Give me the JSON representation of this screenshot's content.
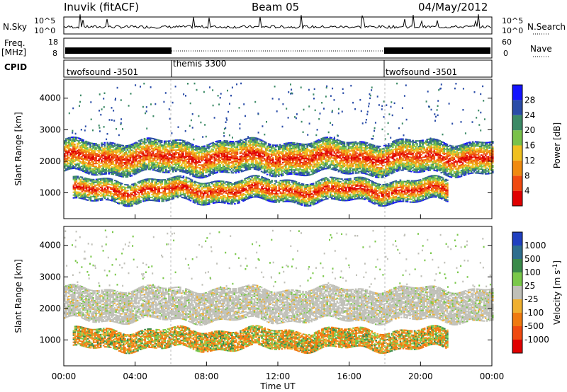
{
  "header": {
    "station": "Inuvik (fitACF)",
    "beam": "Beam 05",
    "date": "04/May/2012"
  },
  "left_labels": {
    "nsky": "N.Sky",
    "freq": "Freq.",
    "freq_unit": "[MHz]",
    "cpid": "CPID"
  },
  "right_labels": {
    "nsearch": "N.Search",
    "nave": "Nave"
  },
  "nsky_axis": {
    "ticks": [
      "10^5",
      "10^0"
    ]
  },
  "nsearch_axis": {
    "ticks": [
      "10^5",
      "10^0"
    ]
  },
  "freq_axis": {
    "ticks": [
      "18",
      "8"
    ]
  },
  "nave_axis": {
    "ticks": [
      "60",
      "0"
    ]
  },
  "cpid": [
    {
      "label": "twofsound -3501",
      "start_h": 0,
      "end_h": 6
    },
    {
      "label": "themis 3300",
      "start_h": 6,
      "end_h": 18
    },
    {
      "label": "twofsound -3501",
      "start_h": 18,
      "end_h": 24
    }
  ],
  "chart_data": [
    {
      "type": "heatmap",
      "name": "power",
      "ylabel": "Slant Range [km]",
      "y_ticks": [
        1000,
        2000,
        3000,
        4000
      ],
      "ylim": [
        180,
        4600
      ],
      "xlim": [
        0,
        24
      ],
      "colorbar": {
        "label": "Power [dB]",
        "ticks": [
          "4",
          "8",
          "12",
          "16",
          "20",
          "24",
          "28"
        ],
        "colors": [
          "#1414ff",
          "#2a4ca8",
          "#3c8a66",
          "#7ac24a",
          "#f0c020",
          "#f08a10",
          "#f04a10",
          "#e00000"
        ]
      },
      "bands": [
        {
          "range_km": [
            700,
            1400
          ],
          "start_h": 0.5,
          "end_h": 21.5,
          "level": "high"
        },
        {
          "range_km": [
            1600,
            2600
          ],
          "start_h": 0.0,
          "end_h": 24.0,
          "level": "high"
        }
      ]
    },
    {
      "type": "heatmap",
      "name": "velocity",
      "ylabel": "Slant Range [km]",
      "y_ticks": [
        1000,
        2000,
        3000,
        4000
      ],
      "ylim": [
        180,
        4600
      ],
      "xlim": [
        0,
        24
      ],
      "colorbar": {
        "label": "Velocity [m s^-1]",
        "ticks": [
          "1000",
          "500",
          "100",
          "25",
          "-25",
          "-100",
          "-500",
          "-1000"
        ],
        "colors": [
          "#2040c0",
          "#2e6e8e",
          "#3a8a4a",
          "#7ac84a",
          "#c0c0b8",
          "#f0b030",
          "#f07a10",
          "#f04a10",
          "#e00000"
        ]
      },
      "bands": [
        {
          "range_km": [
            700,
            1300
          ],
          "start_h": 0.5,
          "end_h": 21.5,
          "level": "orange-green"
        },
        {
          "range_km": [
            1600,
            2600
          ],
          "start_h": 0.0,
          "end_h": 24.0,
          "level": "grey"
        }
      ]
    }
  ],
  "x_axis": {
    "ticks": [
      "00:00",
      "04:00",
      "08:00",
      "12:00",
      "16:00",
      "20:00",
      "00:00"
    ],
    "label": "Time UT"
  }
}
